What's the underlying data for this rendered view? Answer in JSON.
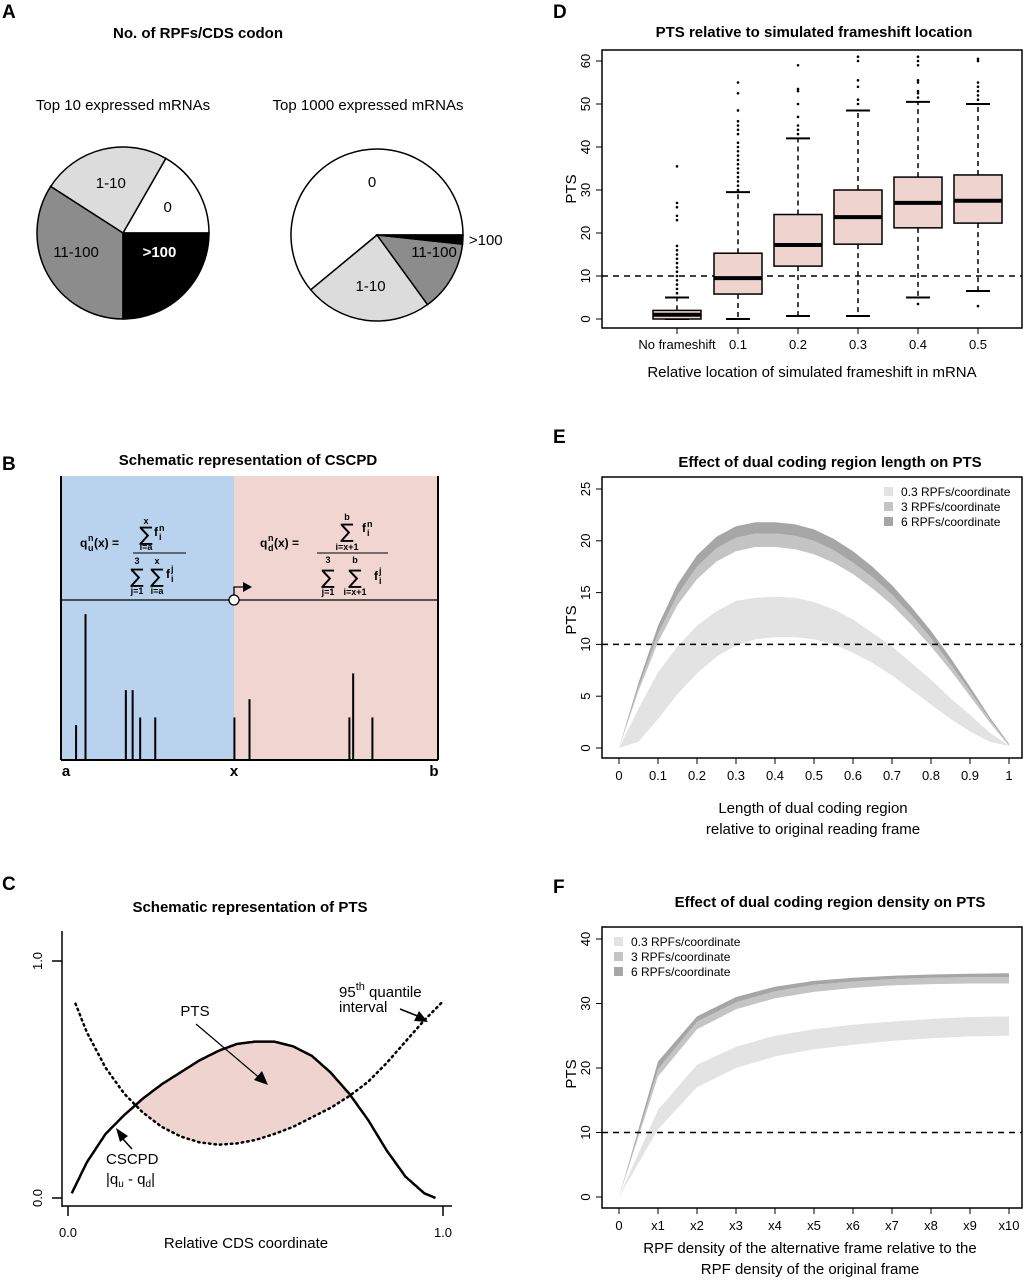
{
  "panel_labels": {
    "A": "A",
    "B": "B",
    "C": "C",
    "D": "D",
    "E": "E",
    "F": "F"
  },
  "chart_data": [
    {
      "id": "A",
      "type": "pie",
      "title": "No. of RPFs/CDS codon",
      "colors": {
        "0": "#ffffff",
        "1-10": "#dcdcdc",
        "11-100": "#8c8c8c",
        ">100": "#000000"
      },
      "pies": [
        {
          "subtitle": "Top 10 expressed mRNAs",
          "slices": [
            {
              "label": "0",
              "value": 16.7
            },
            {
              "label": "1-10",
              "value": 24.2
            },
            {
              "label": "11-100",
              "value": 34.1
            },
            {
              "label": ">100",
              "value": 25.0
            }
          ]
        },
        {
          "subtitle": "Top 1000 expressed mRNAs",
          "slices": [
            {
              "label": "0",
              "value": 61.0
            },
            {
              "label": "1-10",
              "value": 24.0
            },
            {
              "label": "11-100",
              "value": 13.3
            },
            {
              "label": ">100",
              "value": 1.7
            }
          ]
        }
      ]
    },
    {
      "id": "B",
      "type": "diagram",
      "title": "Schematic representation of CSCPD",
      "x_labels": [
        "a",
        "x",
        "b"
      ],
      "left_region_color": "#b9d3ee",
      "right_region_color": "#f0d5d1",
      "equation_upstream": {
        "lhs": "q",
        "lhs_sup": "n",
        "lhs_sub": "u",
        "arg": "(x) =",
        "num_sum_top": "x",
        "num_sum_bottom": "i=a",
        "num_term": "f",
        "num_term_sup": "n",
        "num_term_sub": "i",
        "den_sum1_top": "3",
        "den_sum1_bottom": "j=1",
        "den_sum2_top": "x",
        "den_sum2_bottom": "i=a",
        "den_term": "f",
        "den_term_sup": "j",
        "den_term_sub": "i"
      },
      "equation_downstream": {
        "lhs": "q",
        "lhs_sup": "n",
        "lhs_sub": "d",
        "arg": "(x) =",
        "num_sum_top": "b",
        "num_sum_bottom": "i=x+1",
        "num_term": "f",
        "num_term_sup": "n",
        "num_term_sub": "i",
        "den_sum1_top": "3",
        "den_sum1_bottom": "j=1",
        "den_sum2_top": "b",
        "den_sum2_bottom": "i=x+1",
        "den_term": "f",
        "den_term_sup": "j",
        "den_term_sub": "i"
      },
      "spikes": [
        {
          "pos": 0.04,
          "height": 0.23
        },
        {
          "pos": 0.065,
          "height": 0.96
        },
        {
          "pos": 0.172,
          "height": 0.46
        },
        {
          "pos": 0.19,
          "height": 0.46
        },
        {
          "pos": 0.21,
          "height": 0.28
        },
        {
          "pos": 0.25,
          "height": 0.28
        },
        {
          "pos": 0.46,
          "height": 0.28
        },
        {
          "pos": 0.5,
          "height": 0.4
        },
        {
          "pos": 0.765,
          "height": 0.28
        },
        {
          "pos": 0.775,
          "height": 0.57
        },
        {
          "pos": 0.826,
          "height": 0.28
        }
      ]
    },
    {
      "id": "C",
      "type": "line",
      "title": "Schematic representation of PTS",
      "xlabel": "Relative CDS coordinate",
      "x_ticks": [
        "0.0",
        "1.0"
      ],
      "y_ticks": [
        "0.0",
        "1.0"
      ],
      "xlim": [
        0,
        1
      ],
      "ylim": [
        0,
        1
      ],
      "fill_color": "#efd3cf",
      "annotations": {
        "pts": "PTS",
        "quantile_prefix": "95",
        "quantile_sup": "th",
        "quantile_suffix": " quantile",
        "quantile_line2": "interval",
        "cscpd": "CSCPD",
        "cscpd_formula": "|q",
        "cscpd_sub1": "u",
        "cscpd_mid": " - q",
        "cscpd_sub2": "d",
        "cscpd_end": "|"
      },
      "series": [
        {
          "name": "CSCPD |qu - qd|",
          "style": "solid",
          "x": [
            0.01,
            0.05,
            0.1,
            0.15,
            0.2,
            0.25,
            0.3,
            0.35,
            0.4,
            0.45,
            0.5,
            0.55,
            0.6,
            0.65,
            0.7,
            0.75,
            0.8,
            0.85,
            0.9,
            0.95,
            0.98
          ],
          "y": [
            0.02,
            0.15,
            0.27,
            0.35,
            0.42,
            0.48,
            0.53,
            0.58,
            0.62,
            0.65,
            0.66,
            0.66,
            0.64,
            0.6,
            0.53,
            0.44,
            0.33,
            0.2,
            0.09,
            0.02,
            0.0
          ]
        },
        {
          "name": "95th quantile interval",
          "style": "dotted",
          "x": [
            0.02,
            0.05,
            0.1,
            0.15,
            0.2,
            0.25,
            0.3,
            0.35,
            0.4,
            0.45,
            0.5,
            0.55,
            0.6,
            0.65,
            0.7,
            0.75,
            0.8,
            0.85,
            0.9,
            0.95,
            1.0
          ],
          "y": [
            0.82,
            0.7,
            0.55,
            0.44,
            0.36,
            0.3,
            0.26,
            0.235,
            0.225,
            0.23,
            0.245,
            0.27,
            0.3,
            0.34,
            0.38,
            0.43,
            0.49,
            0.57,
            0.66,
            0.75,
            0.83
          ]
        }
      ]
    },
    {
      "id": "D",
      "type": "box",
      "title": "PTS relative to simulated frameshift location",
      "xlabel": "Relative location of simulated frameshift in mRNA",
      "ylabel": "PTS",
      "ylim": [
        -2,
        62
      ],
      "y_ticks": [
        0,
        10,
        20,
        30,
        40,
        50,
        60
      ],
      "hline": 10,
      "box_color": "#efd3cf",
      "categories": [
        "No frameshift",
        "0.1",
        "0.2",
        "0.3",
        "0.4",
        "0.5"
      ],
      "boxes": [
        {
          "whisker_low": 0,
          "q1": 0,
          "median": 1,
          "q3": 2,
          "whisker_high": 5,
          "outliers": [
            6,
            7,
            8,
            9,
            10,
            11,
            12,
            13,
            14,
            15,
            16,
            17,
            23,
            24,
            26,
            27,
            35.5
          ]
        },
        {
          "whisker_low": 0,
          "q1": 5.8,
          "median": 9.5,
          "q3": 15.3,
          "whisker_high": 29.5,
          "outliers": [
            30,
            31,
            32,
            33,
            34,
            35,
            36,
            37,
            38,
            39,
            40,
            41,
            43,
            44,
            45,
            46,
            48.5,
            52.5,
            55
          ]
        },
        {
          "whisker_low": 0.7,
          "q1": 12.3,
          "median": 17.2,
          "q3": 24.3,
          "whisker_high": 42,
          "outliers": [
            43,
            44,
            45,
            47,
            50,
            53,
            53.5,
            59
          ]
        },
        {
          "whisker_low": 0.7,
          "q1": 17.4,
          "median": 23.7,
          "q3": 30,
          "whisker_high": 48.5,
          "outliers": [
            50,
            51,
            54,
            55.5,
            60,
            61
          ]
        },
        {
          "whisker_low": 5,
          "q1": 21.2,
          "median": 27,
          "q3": 33,
          "whisker_high": 50.5,
          "outliers": [
            3.5,
            51.5,
            52.5,
            53,
            55,
            55.5,
            59,
            60,
            61
          ]
        },
        {
          "whisker_low": 6.5,
          "q1": 22.3,
          "median": 27.5,
          "q3": 33.5,
          "whisker_high": 50,
          "outliers": [
            3,
            51,
            52,
            53,
            54,
            55,
            60,
            60.5
          ]
        }
      ]
    },
    {
      "id": "E",
      "type": "area",
      "title": "Effect of dual coding region length on PTS",
      "xlabel_line1": "Length of dual coding region",
      "xlabel_line2": "relative to original reading frame",
      "ylabel": "PTS",
      "xlim": [
        -0.015,
        1.01
      ],
      "ylim": [
        -1,
        26
      ],
      "x_ticks": [
        "0",
        "0.1",
        "0.2",
        "0.3",
        "0.4",
        "0.5",
        "0.6",
        "0.7",
        "0.8",
        "0.9",
        "1"
      ],
      "y_ticks": [
        0,
        5,
        10,
        15,
        20,
        25
      ],
      "hline": 10,
      "legend_position": "top-right",
      "x": [
        0,
        0.05,
        0.1,
        0.15,
        0.2,
        0.25,
        0.3,
        0.35,
        0.4,
        0.45,
        0.5,
        0.55,
        0.6,
        0.65,
        0.7,
        0.75,
        0.8,
        0.85,
        0.9,
        0.95,
        1.0
      ],
      "series": [
        {
          "name": "0.3 RPFs/coordinate",
          "color": "#e3e3e3",
          "lower": [
            0,
            0.6,
            2.8,
            5.2,
            7.2,
            8.8,
            9.9,
            10.5,
            10.7,
            10.7,
            10.5,
            10.0,
            9.2,
            8.2,
            7.0,
            5.6,
            4.2,
            2.8,
            1.6,
            0.6,
            0.2
          ],
          "upper": [
            0,
            3.8,
            7.3,
            9.8,
            11.8,
            13.2,
            14.2,
            14.5,
            14.6,
            14.5,
            14.1,
            13.4,
            12.4,
            11.1,
            9.8,
            8.2,
            6.6,
            4.8,
            3.2,
            1.5,
            0.2
          ]
        },
        {
          "name": "3 RPFs/coordinate",
          "color": "#c4c4c4",
          "lower": [
            0,
            5.5,
            10.2,
            13.8,
            16.3,
            18.0,
            19.0,
            19.4,
            19.4,
            19.2,
            18.7,
            17.9,
            16.8,
            15.4,
            13.8,
            11.9,
            9.8,
            7.5,
            5.0,
            2.5,
            0.2
          ],
          "upper": [
            0,
            5.9,
            11.0,
            14.8,
            17.5,
            19.3,
            20.3,
            20.7,
            20.7,
            20.5,
            20.0,
            19.1,
            17.9,
            16.5,
            14.8,
            12.8,
            10.6,
            8.1,
            5.5,
            2.8,
            0.3
          ]
        },
        {
          "name": "6 RPFs/coordinate",
          "color": "#a6a6a6",
          "lower": [
            0,
            5.9,
            11.0,
            14.8,
            17.5,
            19.3,
            20.3,
            20.7,
            20.7,
            20.5,
            20.0,
            19.1,
            17.9,
            16.5,
            14.8,
            12.8,
            10.6,
            8.1,
            5.5,
            2.8,
            0.3
          ],
          "upper": [
            0,
            6.3,
            11.8,
            15.8,
            18.6,
            20.4,
            21.4,
            21.8,
            21.8,
            21.6,
            21.1,
            20.2,
            19.0,
            17.5,
            15.7,
            13.6,
            11.3,
            8.7,
            5.9,
            3.0,
            0.4
          ]
        }
      ]
    },
    {
      "id": "F",
      "type": "area",
      "title": "Effect of dual coding region density on PTS",
      "xlabel_line1": "RPF density of the alternative frame relative to the",
      "xlabel_line2": "RPF density of the original frame",
      "ylabel": "PTS",
      "xlim": [
        -0.15,
        10.1
      ],
      "ylim": [
        -1.5,
        41.5
      ],
      "x_ticks": [
        "0",
        "x1",
        "x2",
        "x3",
        "x4",
        "x5",
        "x6",
        "x7",
        "x8",
        "x9",
        "x10"
      ],
      "y_ticks": [
        0,
        10,
        20,
        30,
        40
      ],
      "hline": 10,
      "legend_position": "top-left",
      "x": [
        0,
        1,
        2,
        3,
        4,
        5,
        6,
        7,
        8,
        9,
        10
      ],
      "series": [
        {
          "name": "0.3 RPFs/coordinate",
          "color": "#e3e3e3",
          "lower": [
            0,
            10.5,
            17.0,
            20.0,
            21.8,
            22.9,
            23.6,
            24.2,
            24.6,
            24.9,
            25.0
          ],
          "upper": [
            0,
            13.5,
            20.5,
            23.3,
            25.0,
            26.0,
            26.7,
            27.2,
            27.6,
            27.9,
            28.0
          ]
        },
        {
          "name": "3 RPFs/coordinate",
          "color": "#c4c4c4",
          "lower": [
            0,
            18.7,
            26.0,
            29.1,
            30.8,
            31.8,
            32.4,
            32.8,
            33.0,
            33.1,
            33.1
          ],
          "upper": [
            0,
            19.8,
            27.2,
            30.2,
            31.9,
            32.9,
            33.4,
            33.8,
            34.0,
            34.1,
            34.1
          ]
        },
        {
          "name": "6 RPFs/coordinate",
          "color": "#a6a6a6",
          "lower": [
            0,
            19.8,
            27.2,
            30.2,
            31.9,
            32.9,
            33.4,
            33.8,
            34.0,
            34.1,
            34.1
          ],
          "upper": [
            0,
            21.0,
            28.0,
            31.0,
            32.6,
            33.5,
            34.0,
            34.3,
            34.5,
            34.6,
            34.7
          ]
        }
      ]
    }
  ]
}
